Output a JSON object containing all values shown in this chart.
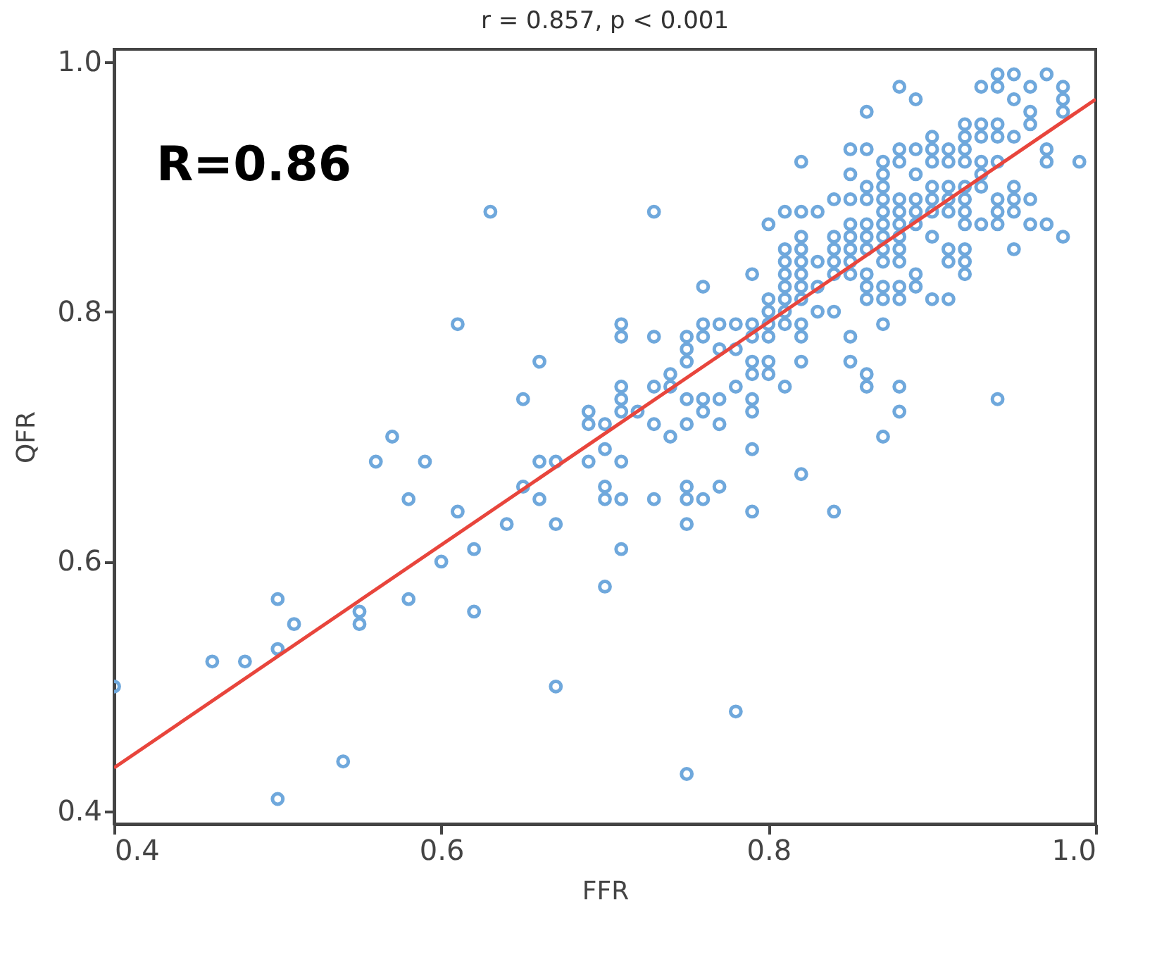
{
  "chart_data": {
    "type": "scatter",
    "title": "r = 0.857, p < 0.001",
    "xlabel": "FFR",
    "ylabel": "QFR",
    "annotations": [
      "R=0.86"
    ],
    "xlim": [
      0.4,
      1.0
    ],
    "ylim": [
      0.39,
      1.01
    ],
    "xticks": [
      0.4,
      0.6,
      0.8,
      {
        "value": 1.0,
        "label": "1.0"
      }
    ],
    "yticks": [
      0.4,
      0.6,
      0.8,
      {
        "value": 1.0,
        "label": "1.0"
      }
    ],
    "grid": false,
    "marker": "circle",
    "series": [
      {
        "type": "scatter",
        "color": "#6fa8dc",
        "x": [
          0.4,
          0.46,
          0.48,
          0.5,
          0.5,
          0.5,
          0.51,
          0.54,
          0.55,
          0.55,
          0.56,
          0.57,
          0.58,
          0.58,
          0.59,
          0.6,
          0.61,
          0.61,
          0.62,
          0.62,
          0.63,
          0.64,
          0.65,
          0.65,
          0.66,
          0.66,
          0.66,
          0.67,
          0.67,
          0.67,
          0.69,
          0.69,
          0.69,
          0.7,
          0.7,
          0.7,
          0.7,
          0.7,
          0.71,
          0.71,
          0.71,
          0.71,
          0.71,
          0.71,
          0.71,
          0.71,
          0.72,
          0.73,
          0.73,
          0.73,
          0.73,
          0.73,
          0.74,
          0.74,
          0.74,
          0.75,
          0.75,
          0.75,
          0.75,
          0.75,
          0.75,
          0.75,
          0.75,
          0.75,
          0.76,
          0.76,
          0.76,
          0.76,
          0.76,
          0.76,
          0.77,
          0.77,
          0.77,
          0.77,
          0.77,
          0.78,
          0.78,
          0.78,
          0.78,
          0.79,
          0.79,
          0.79,
          0.79,
          0.79,
          0.79,
          0.79,
          0.79,
          0.79,
          0.8,
          0.8,
          0.8,
          0.8,
          0.8,
          0.8,
          0.8,
          0.81,
          0.81,
          0.81,
          0.81,
          0.81,
          0.81,
          0.81,
          0.81,
          0.81,
          0.82,
          0.82,
          0.82,
          0.82,
          0.82,
          0.82,
          0.82,
          0.82,
          0.82,
          0.82,
          0.82,
          0.82,
          0.83,
          0.83,
          0.83,
          0.83,
          0.84,
          0.84,
          0.84,
          0.84,
          0.84,
          0.84,
          0.84,
          0.85,
          0.85,
          0.85,
          0.85,
          0.85,
          0.85,
          0.85,
          0.85,
          0.85,
          0.85,
          0.86,
          0.86,
          0.86,
          0.86,
          0.86,
          0.86,
          0.86,
          0.86,
          0.86,
          0.86,
          0.86,
          0.86,
          0.87,
          0.87,
          0.87,
          0.87,
          0.87,
          0.87,
          0.87,
          0.87,
          0.87,
          0.87,
          0.87,
          0.87,
          0.87,
          0.88,
          0.88,
          0.88,
          0.88,
          0.88,
          0.88,
          0.88,
          0.88,
          0.88,
          0.88,
          0.88,
          0.88,
          0.88,
          0.89,
          0.89,
          0.89,
          0.89,
          0.89,
          0.89,
          0.89,
          0.89,
          0.9,
          0.9,
          0.9,
          0.9,
          0.9,
          0.9,
          0.9,
          0.9,
          0.91,
          0.91,
          0.91,
          0.91,
          0.91,
          0.91,
          0.91,
          0.91,
          0.92,
          0.92,
          0.92,
          0.92,
          0.92,
          0.92,
          0.92,
          0.92,
          0.92,
          0.92,
          0.92,
          0.93,
          0.93,
          0.93,
          0.93,
          0.93,
          0.93,
          0.93,
          0.94,
          0.94,
          0.94,
          0.94,
          0.94,
          0.94,
          0.94,
          0.94,
          0.94,
          0.95,
          0.95,
          0.95,
          0.95,
          0.95,
          0.95,
          0.95,
          0.96,
          0.96,
          0.96,
          0.96,
          0.96,
          0.97,
          0.97,
          0.97,
          0.97,
          0.98,
          0.98,
          0.98,
          0.98,
          0.99
        ],
        "values": [
          0.5,
          0.52,
          0.52,
          0.57,
          0.53,
          0.41,
          0.55,
          0.44,
          0.56,
          0.55,
          0.68,
          0.7,
          0.65,
          0.57,
          0.68,
          0.6,
          0.79,
          0.64,
          0.61,
          0.56,
          0.88,
          0.63,
          0.73,
          0.66,
          0.76,
          0.68,
          0.65,
          0.68,
          0.63,
          0.5,
          0.72,
          0.71,
          0.68,
          0.71,
          0.69,
          0.66,
          0.65,
          0.58,
          0.79,
          0.78,
          0.74,
          0.73,
          0.72,
          0.68,
          0.65,
          0.61,
          0.72,
          0.88,
          0.78,
          0.74,
          0.71,
          0.65,
          0.75,
          0.74,
          0.7,
          0.78,
          0.77,
          0.76,
          0.73,
          0.71,
          0.66,
          0.65,
          0.63,
          0.43,
          0.82,
          0.79,
          0.78,
          0.73,
          0.72,
          0.65,
          0.79,
          0.77,
          0.73,
          0.71,
          0.66,
          0.79,
          0.77,
          0.74,
          0.48,
          0.83,
          0.79,
          0.78,
          0.76,
          0.75,
          0.73,
          0.72,
          0.69,
          0.64,
          0.87,
          0.81,
          0.8,
          0.79,
          0.78,
          0.76,
          0.75,
          0.88,
          0.85,
          0.84,
          0.83,
          0.82,
          0.81,
          0.8,
          0.79,
          0.74,
          0.92,
          0.88,
          0.86,
          0.85,
          0.84,
          0.83,
          0.82,
          0.81,
          0.79,
          0.78,
          0.76,
          0.67,
          0.88,
          0.84,
          0.82,
          0.8,
          0.89,
          0.86,
          0.85,
          0.84,
          0.83,
          0.8,
          0.64,
          0.93,
          0.91,
          0.89,
          0.87,
          0.86,
          0.85,
          0.84,
          0.83,
          0.78,
          0.76,
          0.96,
          0.93,
          0.9,
          0.89,
          0.87,
          0.86,
          0.85,
          0.83,
          0.82,
          0.81,
          0.75,
          0.74,
          0.92,
          0.91,
          0.9,
          0.89,
          0.88,
          0.87,
          0.86,
          0.85,
          0.84,
          0.82,
          0.81,
          0.79,
          0.7,
          0.98,
          0.93,
          0.92,
          0.89,
          0.88,
          0.87,
          0.86,
          0.85,
          0.84,
          0.82,
          0.81,
          0.74,
          0.72,
          0.97,
          0.93,
          0.91,
          0.89,
          0.88,
          0.87,
          0.83,
          0.82,
          0.94,
          0.93,
          0.92,
          0.9,
          0.89,
          0.88,
          0.86,
          0.81,
          0.93,
          0.92,
          0.9,
          0.89,
          0.88,
          0.85,
          0.84,
          0.81,
          0.95,
          0.94,
          0.93,
          0.92,
          0.9,
          0.89,
          0.88,
          0.87,
          0.85,
          0.84,
          0.83,
          0.98,
          0.95,
          0.94,
          0.92,
          0.91,
          0.9,
          0.87,
          0.99,
          0.98,
          0.95,
          0.94,
          0.92,
          0.89,
          0.88,
          0.87,
          0.73,
          0.99,
          0.97,
          0.94,
          0.9,
          0.89,
          0.88,
          0.85,
          0.98,
          0.96,
          0.95,
          0.89,
          0.87,
          0.99,
          0.93,
          0.92,
          0.87,
          0.98,
          0.97,
          0.96,
          0.86,
          0.92
        ]
      },
      {
        "type": "line",
        "color": "#e8453c",
        "marker": "none",
        "line_style": "solid",
        "x": [
          0.4,
          1.0
        ],
        "values": [
          0.435,
          0.97
        ]
      }
    ]
  }
}
